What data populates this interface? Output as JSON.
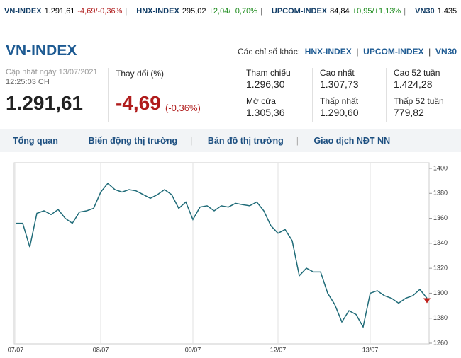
{
  "ticker": [
    {
      "name": "VN-INDEX",
      "value": "1.291,61",
      "change": "-4,69/-0,36%"
    },
    {
      "name": "HNX-INDEX",
      "value": "295,02",
      "change": "+2,04/+0,70%"
    },
    {
      "name": "UPCOM-INDEX",
      "value": "84,84",
      "change": "+0,95/+1,13%"
    },
    {
      "name": "VN30",
      "value": "1.435"
    }
  ],
  "header": {
    "title": "VN-INDEX",
    "others_label": "Các chỉ số khác:",
    "others": [
      "HNX-INDEX",
      "UPCOM-INDEX",
      "VN30"
    ]
  },
  "summary": {
    "updated_label": "Cập nhật ngày 13/07/2021",
    "updated_time": "12:25:03 CH",
    "index_value": "1.291,61",
    "change_label": "Thay đổi (%)",
    "change": "-4,69",
    "change_pct": "(-0,36%)"
  },
  "stats": [
    {
      "label": "Tham chiếu",
      "value": "1.296,30"
    },
    {
      "label": "Mở cửa",
      "value": "1.305,36"
    },
    {
      "label": "Cao nhất",
      "value": "1.307,73"
    },
    {
      "label": "Thấp nhất",
      "value": "1.290,60"
    },
    {
      "label": "Cao 52 tuần",
      "value": "1.424,28"
    },
    {
      "label": "Thấp 52 tuần",
      "value": "779,82"
    }
  ],
  "tabs": [
    "Tổng quan",
    "Biến động thị trường",
    "Bản đồ thị trường",
    "Giao dịch NĐT NN"
  ],
  "chart_data": {
    "type": "line",
    "categories": [
      "07/07",
      null,
      null,
      null,
      null,
      null,
      null,
      null,
      null,
      null,
      null,
      null,
      "08/07",
      null,
      null,
      null,
      null,
      null,
      null,
      null,
      null,
      null,
      null,
      null,
      null,
      "09/07",
      null,
      null,
      null,
      null,
      null,
      null,
      null,
      null,
      null,
      null,
      null,
      "12/07",
      null,
      null,
      null,
      null,
      null,
      null,
      null,
      null,
      null,
      null,
      null,
      null,
      "13/07",
      null,
      null,
      null,
      null,
      null,
      null,
      null,
      null
    ],
    "series": [
      {
        "color": "#1f6b78",
        "values": [
          1356,
          1356,
          1337,
          1364,
          1366,
          1363,
          1367,
          1360,
          1356,
          1365,
          1366,
          1368,
          1381,
          1388,
          1383,
          1381,
          1383,
          1382,
          1379,
          1376,
          1379,
          1383,
          1379,
          1368,
          1373,
          1359,
          1369,
          1370,
          1366,
          1370,
          1369,
          1372,
          1371,
          1370,
          1373,
          1366,
          1354,
          1348,
          1351,
          1342,
          1314,
          1320,
          1317,
          1317,
          1300,
          1291,
          1277,
          1286,
          1283,
          1273,
          1300,
          1302,
          1298,
          1296,
          1292,
          1296,
          1298,
          1303,
          1296
        ]
      }
    ],
    "ylim": [
      1260,
      1400
    ],
    "yticks": [
      1260,
      1280,
      1300,
      1320,
      1340,
      1360,
      1380,
      1400
    ],
    "xgrid": true
  }
}
